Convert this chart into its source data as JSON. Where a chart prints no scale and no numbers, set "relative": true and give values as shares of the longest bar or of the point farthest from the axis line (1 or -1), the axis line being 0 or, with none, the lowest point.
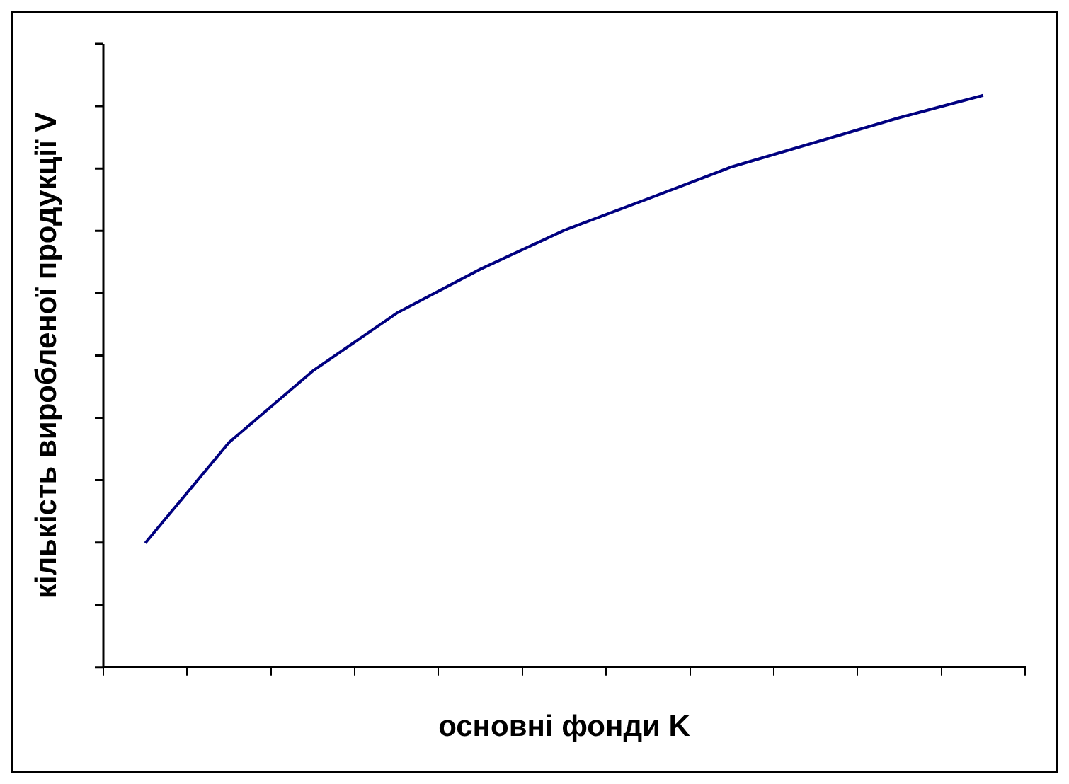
{
  "chart_data": {
    "type": "line",
    "relative": true,
    "xlabel": "основні фонди K",
    "ylabel": "кількість виробленої продукції V",
    "categories": [
      null,
      null,
      null,
      null,
      null,
      null,
      null,
      null,
      null,
      null,
      null
    ],
    "series": [
      {
        "color": "#000080",
        "values": [
          0.217,
          0.393,
          0.518,
          0.619,
          0.696,
          0.764,
          0.819,
          0.875,
          0.918,
          0.961,
          1.0
        ]
      }
    ],
    "grid": false,
    "legend": false,
    "marker": "none",
    "line_style": "solid"
  }
}
